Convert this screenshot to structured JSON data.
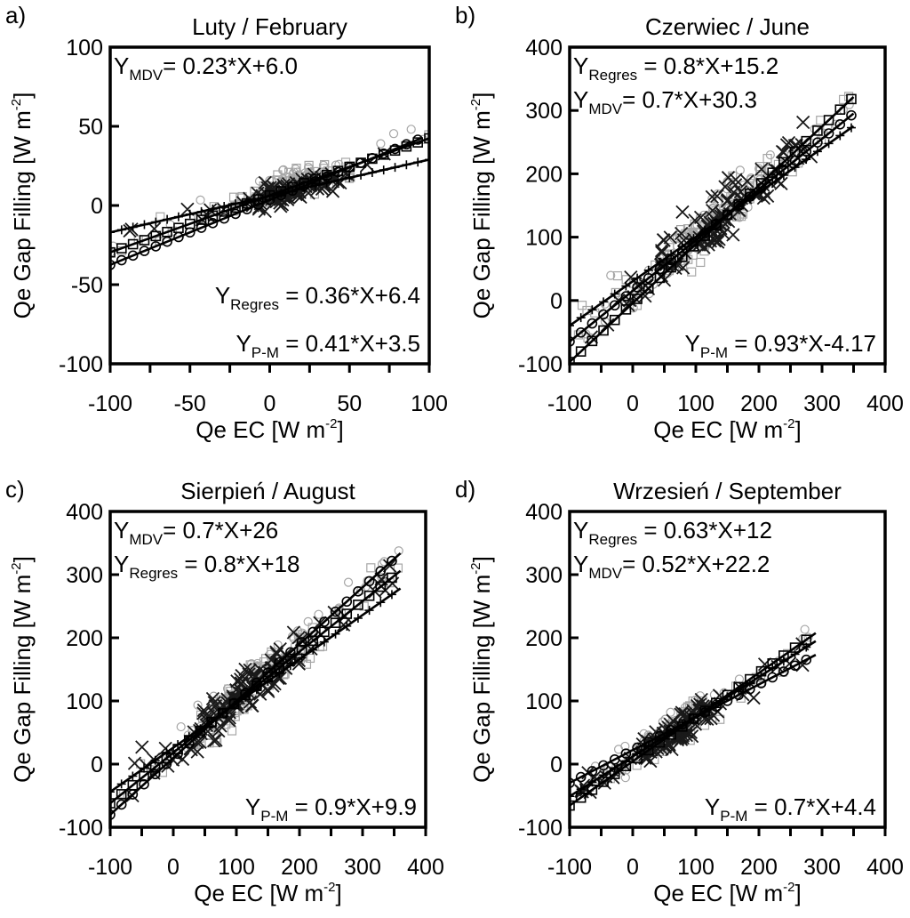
{
  "colors": {
    "mdv": "#a6a6a6",
    "regres": "#a6a6a6",
    "pm": "#000000",
    "frame": "#000000"
  },
  "chart_data": [
    {
      "type": "scatter",
      "panel_label": "a)",
      "title": "Luty / February",
      "xlabel": "Qe EC [W m",
      "xlabel_sup": "-2",
      "xlabel_end": "]",
      "ylabel": "Qe Gap Filling [W m",
      "ylabel_sup": "-2",
      "ylabel_end": "]",
      "xlim": [
        -100,
        100
      ],
      "ylim": [
        -100,
        100
      ],
      "xticks": [
        -100,
        -50,
        0,
        50,
        100
      ],
      "yticks": [
        -100,
        -50,
        0,
        50,
        100
      ],
      "x_range": [
        -100,
        100
      ],
      "center": 10,
      "spread": 30,
      "seed": 11,
      "series": [
        {
          "name": "MDV",
          "marker": "circle",
          "slope": 0.36,
          "intercept": 9,
          "noise": 9,
          "count": 70
        },
        {
          "name": "Regres",
          "marker": "square",
          "slope": 0.34,
          "intercept": 8,
          "noise": 10,
          "count": 70
        },
        {
          "name": "P-M",
          "marker": "x",
          "slope": 0.25,
          "intercept": 6,
          "noise": 8,
          "count": 95
        }
      ],
      "lines": [
        {
          "name": "MDV",
          "slope": 0.23,
          "intercept": 6.0,
          "marker": "plus",
          "x_start": -100,
          "x_end": 100
        },
        {
          "name": "Regres",
          "slope": 0.36,
          "intercept": 6.4,
          "marker": "square",
          "x_start": -100,
          "x_end": 100
        },
        {
          "name": "P-M",
          "slope": 0.41,
          "intercept": 3.5,
          "marker": "circle",
          "x_start": -100,
          "x_end": 95
        }
      ],
      "equations": [
        {
          "sub": "MDV",
          "text": "= 0.23*X+6.0",
          "pos": "top-left"
        },
        {
          "sub": "Regres",
          "text": " = 0.36*X+6.4",
          "pos": "lower-right"
        },
        {
          "sub": "P-M",
          "text": " = 0.41*X+3.5",
          "pos": "bottom-right"
        }
      ]
    },
    {
      "type": "scatter",
      "panel_label": "b)",
      "title": "Czerwiec / June",
      "xlabel": "Qe EC [W m",
      "xlabel_sup": "-2",
      "xlabel_end": "]",
      "ylabel": "Qe Gap Filling [W m",
      "ylabel_sup": "-2",
      "ylabel_end": "]",
      "xlim": [
        -100,
        400
      ],
      "ylim": [
        -100,
        400
      ],
      "xticks": [
        -100,
        0,
        100,
        200,
        300,
        400
      ],
      "yticks": [
        -100,
        0,
        100,
        200,
        300,
        400
      ],
      "x_range": [
        -90,
        350
      ],
      "center": 130,
      "spread": 110,
      "seed": 23,
      "series": [
        {
          "name": "MDV",
          "marker": "circle",
          "slope": 0.85,
          "intercept": 20,
          "noise": 35,
          "count": 90
        },
        {
          "name": "Regres",
          "marker": "square",
          "slope": 0.82,
          "intercept": 18,
          "noise": 40,
          "count": 90
        },
        {
          "name": "P-M",
          "marker": "x",
          "slope": 0.8,
          "intercept": 20,
          "noise": 40,
          "count": 120
        }
      ],
      "lines": [
        {
          "name": "Regres",
          "slope": 0.8,
          "intercept": 15.2,
          "marker": "circle",
          "x_start": -100,
          "x_end": 350
        },
        {
          "name": "MDV",
          "slope": 0.7,
          "intercept": 30.3,
          "marker": "plus",
          "x_start": -100,
          "x_end": 350
        },
        {
          "name": "P-M",
          "slope": 0.93,
          "intercept": -4.17,
          "marker": "square",
          "x_start": -100,
          "x_end": 350
        }
      ],
      "equations": [
        {
          "sub": "Regres",
          "text": " = 0.8*X+15.2",
          "pos": "top-left"
        },
        {
          "sub": "MDV",
          "text": "= 0.7*X+30.3",
          "pos": "top-left-2"
        },
        {
          "sub": "P-M",
          "text": " = 0.93*X-4.17",
          "pos": "bottom-right"
        }
      ]
    },
    {
      "type": "scatter",
      "panel_label": "c)",
      "title": "Sierpień / August",
      "xlabel": "Qe EC [W m",
      "xlabel_sup": "-2",
      "xlabel_end": "]",
      "ylabel": "Qe Gap Filling [W m",
      "ylabel_sup": "-2",
      "ylabel_end": "]",
      "xlim": [
        -100,
        400
      ],
      "ylim": [
        -100,
        400
      ],
      "xticks": [
        -100,
        0,
        100,
        200,
        300,
        400
      ],
      "yticks": [
        -100,
        0,
        100,
        200,
        300,
        400
      ],
      "x_range": [
        -90,
        360
      ],
      "center": 120,
      "spread": 100,
      "seed": 37,
      "series": [
        {
          "name": "MDV",
          "marker": "circle",
          "slope": 0.85,
          "intercept": 22,
          "noise": 30,
          "count": 90
        },
        {
          "name": "Regres",
          "marker": "square",
          "slope": 0.82,
          "intercept": 18,
          "noise": 35,
          "count": 90
        },
        {
          "name": "P-M",
          "marker": "x",
          "slope": 0.82,
          "intercept": 20,
          "noise": 35,
          "count": 130
        }
      ],
      "lines": [
        {
          "name": "MDV",
          "slope": 0.7,
          "intercept": 26,
          "marker": "plus",
          "x_start": -100,
          "x_end": 360
        },
        {
          "name": "Regres",
          "slope": 0.8,
          "intercept": 18,
          "marker": "square",
          "x_start": -100,
          "x_end": 360
        },
        {
          "name": "P-M",
          "slope": 0.9,
          "intercept": 9.9,
          "marker": "circle",
          "x_start": -100,
          "x_end": 360
        }
      ],
      "equations": [
        {
          "sub": "MDV",
          "text": "= 0.7*X+26",
          "pos": "top-left"
        },
        {
          "sub": "Regres",
          "text": " = 0.8*X+18",
          "pos": "top-left-2"
        },
        {
          "sub": "P-M",
          "text": " = 0.9*X+9.9",
          "pos": "bottom-right"
        }
      ]
    },
    {
      "type": "scatter",
      "panel_label": "d)",
      "title": "Wrzesień / September",
      "xlabel": "Qe EC [W m",
      "xlabel_sup": "-2",
      "xlabel_end": "]",
      "ylabel": "Qe Gap Filling [W m",
      "ylabel_sup": "-2",
      "ylabel_end": "]",
      "xlim": [
        -100,
        400
      ],
      "ylim": [
        -100,
        400
      ],
      "xticks": [
        -100,
        0,
        100,
        200,
        300,
        400
      ],
      "yticks": [
        -100,
        0,
        100,
        200,
        300,
        400
      ],
      "x_range": [
        -90,
        290
      ],
      "center": 60,
      "spread": 70,
      "seed": 53,
      "series": [
        {
          "name": "MDV",
          "marker": "circle",
          "slope": 0.68,
          "intercept": 15,
          "noise": 22,
          "count": 80
        },
        {
          "name": "Regres",
          "marker": "square",
          "slope": 0.62,
          "intercept": 12,
          "noise": 25,
          "count": 80
        },
        {
          "name": "P-M",
          "marker": "x",
          "slope": 0.62,
          "intercept": 10,
          "noise": 25,
          "count": 110
        }
      ],
      "lines": [
        {
          "name": "Regres",
          "slope": 0.63,
          "intercept": 12,
          "marker": "plus",
          "x_start": -100,
          "x_end": 290
        },
        {
          "name": "MDV",
          "slope": 0.52,
          "intercept": 22.2,
          "marker": "circle",
          "x_start": -100,
          "x_end": 290
        },
        {
          "name": "P-M",
          "slope": 0.7,
          "intercept": 4.4,
          "marker": "square",
          "x_start": -100,
          "x_end": 290
        }
      ],
      "equations": [
        {
          "sub": "Regres",
          "text": " = 0.63*X+12",
          "pos": "top-left"
        },
        {
          "sub": "MDV",
          "text": "= 0.52*X+22.2",
          "pos": "top-left-2"
        },
        {
          "sub": "P-M",
          "text": " = 0.7*X+4.4",
          "pos": "bottom-right"
        }
      ]
    }
  ]
}
